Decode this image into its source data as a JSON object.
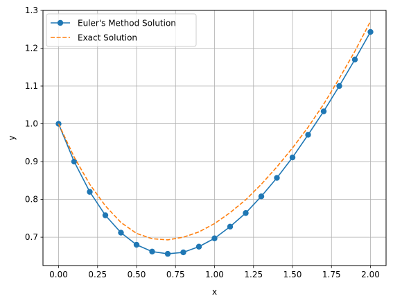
{
  "chart_data": {
    "type": "line",
    "xlabel": "x",
    "ylabel": "y",
    "xlim": [
      -0.1,
      2.1
    ],
    "ylim": [
      0.625,
      1.3
    ],
    "xticks": [
      "0.00",
      "0.25",
      "0.50",
      "0.75",
      "1.00",
      "1.25",
      "1.50",
      "1.75",
      "2.00"
    ],
    "xtick_values": [
      0.0,
      0.25,
      0.5,
      0.75,
      1.0,
      1.25,
      1.5,
      1.75,
      2.0
    ],
    "yticks": [
      "0.7",
      "0.8",
      "0.9",
      "1.0",
      "1.1",
      "1.2",
      "1.3"
    ],
    "ytick_values": [
      0.7,
      0.8,
      0.9,
      1.0,
      1.1,
      1.2,
      1.3
    ],
    "grid": true,
    "legend_position": "top-left",
    "series": [
      {
        "name": "Euler's Method Solution",
        "color": "#1f77b4",
        "style": "solid",
        "marker": "circle",
        "x": [
          0.0,
          0.1,
          0.2,
          0.3,
          0.4,
          0.5,
          0.6,
          0.7,
          0.8,
          0.9,
          1.0,
          1.1,
          1.2,
          1.3,
          1.4,
          1.5,
          1.6,
          1.7,
          1.8,
          1.9,
          2.0
        ],
        "y": [
          1.0,
          0.9,
          0.82,
          0.758,
          0.712,
          0.68,
          0.662,
          0.656,
          0.66,
          0.675,
          0.697,
          0.728,
          0.764,
          0.808,
          0.857,
          0.911,
          0.971,
          1.033,
          1.1,
          1.17,
          1.243
        ]
      },
      {
        "name": "Exact Solution",
        "color": "#ff7f0e",
        "style": "dashed",
        "marker": "none",
        "x": [
          0.0,
          0.1,
          0.2,
          0.3,
          0.4,
          0.5,
          0.6,
          0.7,
          0.8,
          0.9,
          1.0,
          1.1,
          1.2,
          1.3,
          1.4,
          1.5,
          1.6,
          1.7,
          1.8,
          1.9,
          2.0
        ],
        "y": [
          1.0,
          0.912,
          0.84,
          0.783,
          0.739,
          0.71,
          0.696,
          0.693,
          0.7,
          0.714,
          0.736,
          0.765,
          0.799,
          0.84,
          0.886,
          0.936,
          0.991,
          1.052,
          1.12,
          1.192,
          1.271
        ]
      }
    ]
  }
}
